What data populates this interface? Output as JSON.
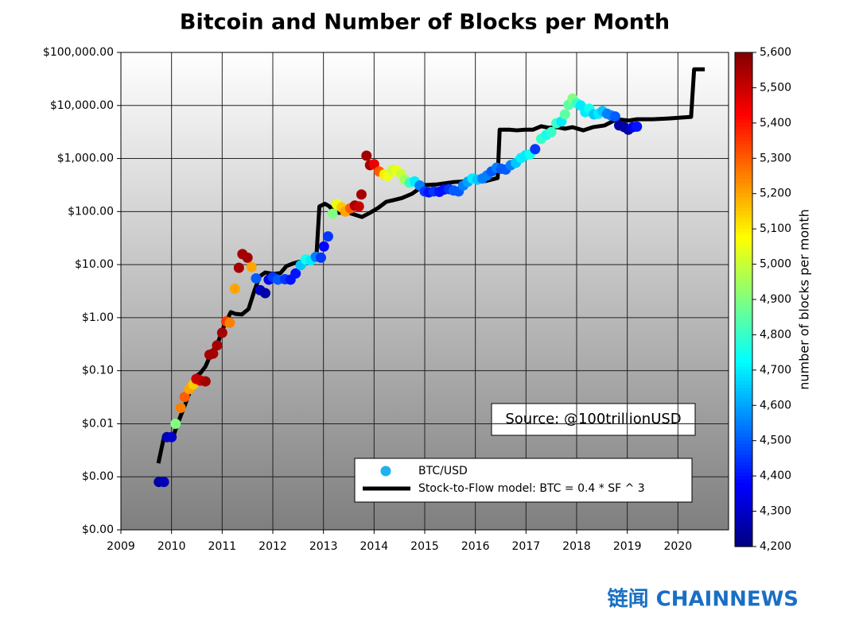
{
  "chart_data": {
    "type": "scatter",
    "title": "Bitcoin and Number of Blocks per Month",
    "xlim": [
      2009,
      2021
    ],
    "xticks": [
      2009,
      2010,
      2011,
      2012,
      2013,
      2014,
      2015,
      2016,
      2017,
      2018,
      2019,
      2020
    ],
    "ylim": [
      0.0001,
      100000
    ],
    "log_y": true,
    "grid": true,
    "yticks": [
      {
        "value": 0.0001,
        "label": "$0.00"
      },
      {
        "value": 0.001,
        "label": "$0.00"
      },
      {
        "value": 0.01,
        "label": "$0.01"
      },
      {
        "value": 0.1,
        "label": "$0.10"
      },
      {
        "value": 1,
        "label": "$1.00"
      },
      {
        "value": 10,
        "label": "$10.00"
      },
      {
        "value": 100,
        "label": "$100.00"
      },
      {
        "value": 1000,
        "label": "$1,000.00"
      },
      {
        "value": 10000,
        "label": "$10,000.00"
      },
      {
        "value": 100000,
        "label": "$100,000.00"
      }
    ],
    "colorbar": {
      "label": "number of blocks per month",
      "colormap": "jet",
      "lim": [
        4200,
        5600
      ],
      "ticks": [
        {
          "value": 4200,
          "label": "4,200"
        },
        {
          "value": 4300,
          "label": "4,300"
        },
        {
          "value": 4400,
          "label": "4,400"
        },
        {
          "value": 4500,
          "label": "4,500"
        },
        {
          "value": 4600,
          "label": "4,600"
        },
        {
          "value": 4700,
          "label": "4,700"
        },
        {
          "value": 4800,
          "label": "4,800"
        },
        {
          "value": 4900,
          "label": "4,900"
        },
        {
          "value": 5000,
          "label": "5,000"
        },
        {
          "value": 5100,
          "label": "5,100"
        },
        {
          "value": 5200,
          "label": "5,200"
        },
        {
          "value": 5300,
          "label": "5,300"
        },
        {
          "value": 5400,
          "label": "5,400"
        },
        {
          "value": 5500,
          "label": "5,500"
        },
        {
          "value": 5600,
          "label": "5,600"
        }
      ]
    },
    "legend": "lower center",
    "annotation": "Source: @100trillionUSD",
    "watermark": "链闻 CHAINNEWS",
    "series": [
      {
        "name": "BTC/USD",
        "type": "scatter",
        "legend_color": "#1fb0f0",
        "x": [
          2009.75,
          2009.85,
          2009.91,
          2010.0,
          2010.08,
          2010.18,
          2010.26,
          2010.35,
          2010.43,
          2010.49,
          2010.57,
          2010.67,
          2010.75,
          2010.82,
          2010.9,
          2011.0,
          2011.08,
          2011.15,
          2011.25,
          2011.33,
          2011.4,
          2011.5,
          2011.58,
          2011.67,
          2011.75,
          2011.85,
          2011.92,
          2012.0,
          2012.1,
          2012.24,
          2012.35,
          2012.45,
          2012.55,
          2012.65,
          2012.75,
          2012.85,
          2012.95,
          2013.01,
          2013.09,
          2013.18,
          2013.26,
          2013.36,
          2013.43,
          2013.53,
          2013.62,
          2013.7,
          2013.75,
          2013.85,
          2013.92,
          2014.0,
          2014.1,
          2014.2,
          2014.27,
          2014.36,
          2014.44,
          2014.53,
          2014.6,
          2014.7,
          2014.8,
          2014.9,
          2015.0,
          2015.08,
          2015.18,
          2015.29,
          2015.38,
          2015.48,
          2015.57,
          2015.67,
          2015.76,
          2015.85,
          2015.94,
          2016.04,
          2016.14,
          2016.23,
          2016.32,
          2016.42,
          2016.51,
          2016.6,
          2016.7,
          2016.8,
          2016.9,
          2016.99,
          2017.08,
          2017.18,
          2017.3,
          2017.4,
          2017.5,
          2017.6,
          2017.7,
          2017.77,
          2017.84,
          2017.92,
          2018.0,
          2018.08,
          2018.17,
          2018.25,
          2018.34,
          2018.43,
          2018.51,
          2018.6,
          2018.68,
          2018.76,
          2018.84,
          2018.94,
          2019.02,
          2019.11,
          2019.19
        ],
        "values": [
          0.0008,
          0.0008,
          0.0056,
          0.0056,
          0.01,
          0.02,
          0.032,
          0.045,
          0.055,
          0.07,
          0.065,
          0.063,
          0.2,
          0.21,
          0.3,
          0.52,
          0.85,
          0.8,
          3.5,
          8.7,
          15.8,
          13.5,
          9,
          5.5,
          3.3,
          2.9,
          5.2,
          5.8,
          5.2,
          5.3,
          5.2,
          6.8,
          9.8,
          12.5,
          12,
          14,
          13.5,
          22,
          34,
          91,
          138,
          120,
          100,
          115,
          130,
          125,
          210,
          1130,
          750,
          780,
          570,
          500,
          470,
          610,
          600,
          510,
          400,
          350,
          370,
          310,
          240,
          230,
          240,
          235,
          260,
          265,
          250,
          240,
          310,
          365,
          420,
          400,
          420,
          480,
          570,
          670,
          640,
          620,
          750,
          830,
          1020,
          1150,
          1200,
          1500,
          2350,
          2780,
          3150,
          4630,
          5000,
          6800,
          10300,
          13500,
          11000,
          10000,
          7500,
          8700,
          6800,
          7000,
          7800,
          7000,
          6500,
          6200,
          4200,
          3900,
          3500,
          3900,
          4000
        ],
        "blocks": [
          4250,
          4280,
          4280,
          4300,
          4900,
          5250,
          5300,
          5200,
          5150,
          5500,
          5500,
          5550,
          5550,
          5550,
          5550,
          5550,
          5350,
          5250,
          5200,
          5550,
          5550,
          5550,
          5200,
          4500,
          4300,
          4250,
          4350,
          4450,
          4500,
          4450,
          4400,
          4400,
          4650,
          4750,
          4700,
          4550,
          4450,
          4380,
          4450,
          4900,
          5050,
          5150,
          5200,
          5300,
          5550,
          5500,
          5550,
          5550,
          5550,
          5450,
          5300,
          5100,
          5050,
          5000,
          5050,
          5000,
          4950,
          4800,
          4700,
          4550,
          4450,
          4400,
          4450,
          4400,
          4400,
          4450,
          4500,
          4500,
          4550,
          4600,
          4700,
          4650,
          4550,
          4550,
          4500,
          4550,
          4500,
          4500,
          4550,
          4650,
          4700,
          4700,
          4750,
          4450,
          4800,
          4750,
          4800,
          4800,
          4700,
          4850,
          4850,
          4900,
          4800,
          4700,
          4700,
          4750,
          4650,
          4700,
          4650,
          4550,
          4550,
          4500,
          4250,
          4250,
          4250,
          4350,
          4400
        ]
      },
      {
        "name": "Stock-to-Flow model: BTC = 0.4 * SF ^ 3",
        "type": "line",
        "color": "#000000",
        "x": [
          2009.74,
          2009.85,
          2010.04,
          2010.12,
          2010.26,
          2010.38,
          2010.46,
          2010.57,
          2010.67,
          2010.78,
          2010.92,
          2011.04,
          2011.17,
          2011.26,
          2011.39,
          2011.52,
          2011.64,
          2011.74,
          2011.85,
          2012.0,
          2012.15,
          2012.27,
          2012.4,
          2012.52,
          2012.74,
          2012.86,
          2012.92,
          2013.03,
          2013.12,
          2013.22,
          2013.5,
          2013.76,
          2013.92,
          2014.08,
          2014.24,
          2014.39,
          2014.55,
          2014.75,
          2014.99,
          2015.25,
          2015.57,
          2015.88,
          2016.2,
          2016.44,
          2016.48,
          2016.67,
          2016.82,
          2016.98,
          2017.14,
          2017.3,
          2017.45,
          2017.61,
          2017.77,
          2017.92,
          2018.13,
          2018.32,
          2018.55,
          2018.79,
          2019.03,
          2019.19,
          2019.5,
          2019.82,
          2020.26,
          2020.32,
          2020.53
        ],
        "values": [
          0.0018,
          0.0056,
          0.006,
          0.01,
          0.022,
          0.045,
          0.076,
          0.09,
          0.12,
          0.21,
          0.35,
          0.71,
          1.27,
          1.18,
          1.15,
          1.45,
          3.3,
          6,
          7.1,
          6.7,
          6.9,
          9.4,
          10.5,
          11.3,
          12,
          13.5,
          125,
          140,
          125,
          95,
          95,
          79,
          95,
          117,
          153,
          165,
          180,
          217,
          315,
          325,
          360,
          375,
          375,
          430,
          3500,
          3500,
          3400,
          3500,
          3500,
          4060,
          3800,
          3900,
          3650,
          3900,
          3400,
          3900,
          4200,
          5500,
          5200,
          5500,
          5500,
          5700,
          6100,
          48000,
          48000
        ]
      }
    ]
  }
}
